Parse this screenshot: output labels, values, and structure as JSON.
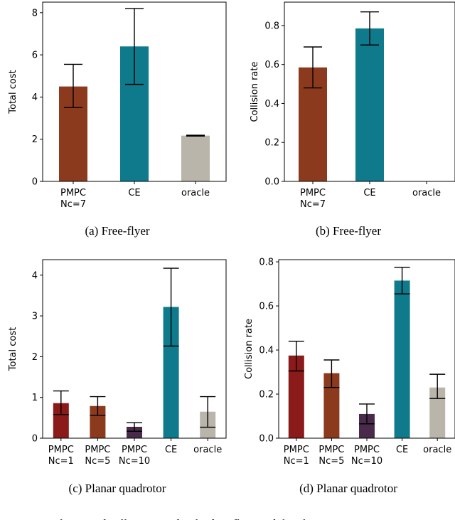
{
  "chart_data": [
    {
      "type": "bar",
      "caption": "(a)  Free-flyer",
      "categories": [
        "PMPC\nNc=7",
        "CE",
        "oracle"
      ],
      "values": [
        4.5,
        6.4,
        2.17
      ],
      "errors": [
        [
          3.5,
          5.55
        ],
        [
          4.6,
          8.2
        ],
        [
          2.15,
          2.19
        ]
      ],
      "colors": [
        "#8b3a1e",
        "#0e7a8c",
        "#bab5aa"
      ],
      "ylabel": "Total cost",
      "ylim": [
        0,
        8.5
      ],
      "yticks": [
        0,
        2,
        4,
        6,
        8
      ]
    },
    {
      "type": "bar",
      "caption": "(b)  Free-flyer",
      "categories": [
        "PMPC\nNc=7",
        "CE",
        "oracle"
      ],
      "values": [
        0.585,
        0.785,
        0.0
      ],
      "errors": [
        [
          0.48,
          0.69
        ],
        [
          0.7,
          0.87
        ],
        null
      ],
      "colors": [
        "#8b3a1e",
        "#0e7a8c",
        "#bab5aa"
      ],
      "ylabel": "Collision rate",
      "ylim": [
        0,
        0.92
      ],
      "yticks": [
        0.0,
        0.2,
        0.4,
        0.6,
        0.8
      ]
    },
    {
      "type": "bar",
      "caption": "(c)  Planar quadrotor",
      "categories": [
        "PMPC\nNc=1",
        "PMPC\nNc=5",
        "PMPC\nNc=10",
        "CE",
        "oracle"
      ],
      "values": [
        0.86,
        0.79,
        0.28,
        3.22,
        0.65
      ],
      "errors": [
        [
          0.58,
          1.16
        ],
        [
          0.56,
          1.02
        ],
        [
          0.17,
          0.38
        ],
        [
          2.26,
          4.17
        ],
        [
          0.27,
          1.02
        ]
      ],
      "colors": [
        "#8b1a1a",
        "#8b3a1e",
        "#4a2a4a",
        "#0e7a8c",
        "#bab5aa"
      ],
      "ylabel": "Total cost",
      "ylim": [
        0,
        4.38
      ],
      "yticks": [
        0,
        1,
        2,
        3,
        4
      ]
    },
    {
      "type": "bar",
      "caption": "(d)  Planar quadrotor",
      "categories": [
        "PMPC\nNc=1",
        "PMPC\nNc=5",
        "PMPC\nNc=10",
        "CE",
        "oracle"
      ],
      "values": [
        0.375,
        0.295,
        0.11,
        0.715,
        0.23
      ],
      "errors": [
        [
          0.305,
          0.44
        ],
        [
          0.23,
          0.355
        ],
        [
          0.065,
          0.155
        ],
        [
          0.655,
          0.775
        ],
        [
          0.18,
          0.29
        ]
      ],
      "colors": [
        "#8b1a1a",
        "#8b3a1e",
        "#4a2a4a",
        "#0e7a8c",
        "#bab5aa"
      ],
      "ylabel": "Collision rate",
      "ylim": [
        0,
        0.81
      ],
      "yticks": [
        0.0,
        0.2,
        0.4,
        0.6,
        0.8
      ]
    }
  ],
  "figure_caption": "Fig. 1: Total cost and collision rate for the free-flyer and the planar"
}
